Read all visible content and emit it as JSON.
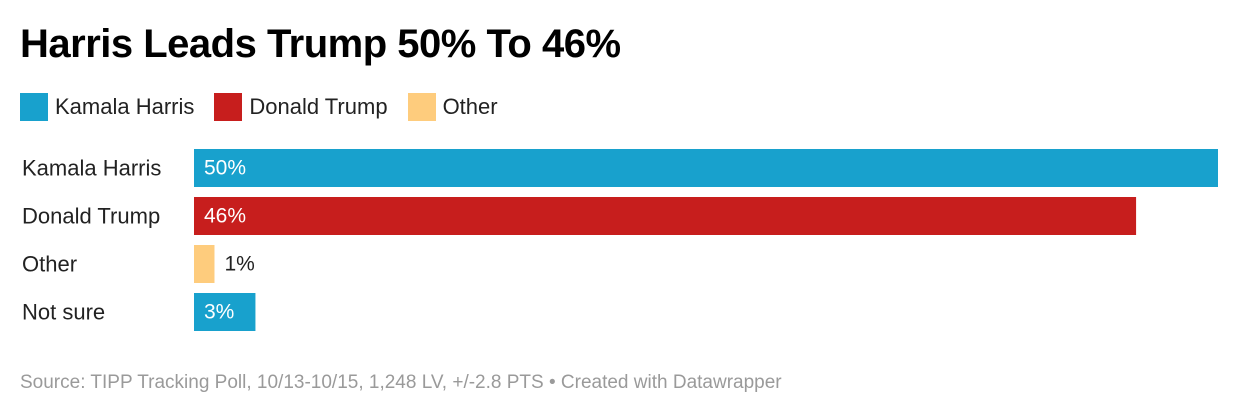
{
  "title": "Harris Leads Trump 50% To 46%",
  "colors": {
    "harris": "#18a1cd",
    "trump": "#c71e1d",
    "other": "#fecc7d"
  },
  "legend": [
    {
      "label": "Kamala Harris",
      "color": "#18a1cd"
    },
    {
      "label": "Donald Trump",
      "color": "#c71e1d"
    },
    {
      "label": "Other",
      "color": "#fecc7d"
    }
  ],
  "chart_data": {
    "type": "bar",
    "orientation": "horizontal",
    "categories": [
      "Kamala Harris",
      "Donald Trump",
      "Other",
      "Not sure"
    ],
    "values": [
      50,
      46,
      1,
      3
    ],
    "labels": [
      "50%",
      "46%",
      "1%",
      "3%"
    ],
    "colors": [
      "#18a1cd",
      "#c71e1d",
      "#fecc7d",
      "#18a1cd"
    ],
    "xlim": [
      0,
      50
    ],
    "unit": "%",
    "grid": false
  },
  "footer": "Source: TIPP Tracking Poll, 10/13-10/15, 1,248 LV, +/-2.8 PTS • Created with Datawrapper"
}
